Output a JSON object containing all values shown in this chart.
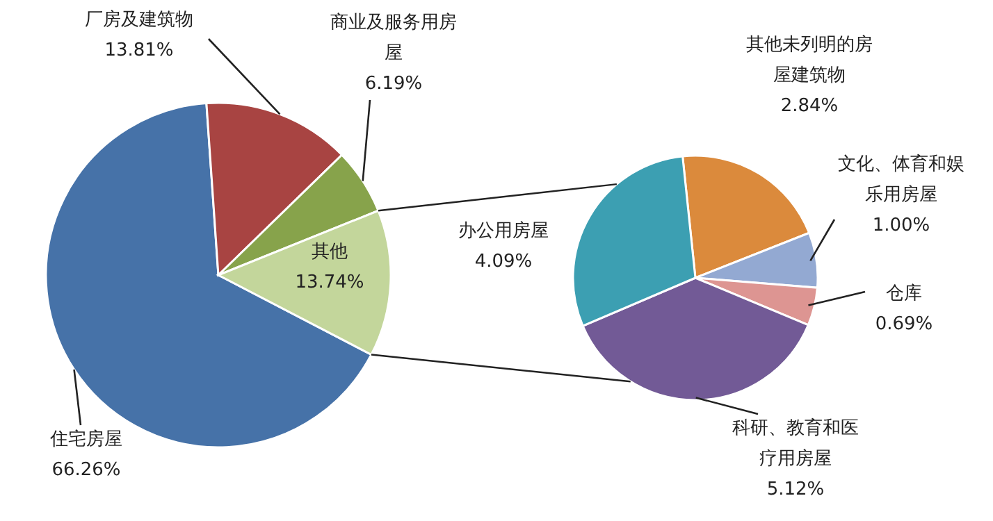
{
  "chart_data": [
    {
      "type": "pie",
      "categories": [
        "住宅房屋",
        "厂房及建筑物",
        "商业及服务用房屋",
        "其他"
      ],
      "values": [
        66.26,
        13.81,
        6.19,
        13.74
      ],
      "colors": [
        "#4672a8",
        "#a84442",
        "#87a34b",
        "#c3d69b"
      ],
      "value_labels": [
        "66.26%",
        "13.81%",
        "6.19%",
        "13.74%"
      ]
    },
    {
      "type": "pie",
      "categories": [
        "其他未列明的房屋建筑物",
        "文化、体育和娱乐用房屋",
        "仓库",
        "科研、教育和医疗用房屋",
        "办公用房屋"
      ],
      "values": [
        2.84,
        1.0,
        0.69,
        5.12,
        4.09
      ],
      "colors": [
        "#db8a3c",
        "#93a9d2",
        "#dd9592",
        "#725a96",
        "#3c9fb2"
      ],
      "value_labels": [
        "2.84%",
        "1.00%",
        "0.69%",
        "5.12%",
        "4.09%"
      ]
    }
  ]
}
